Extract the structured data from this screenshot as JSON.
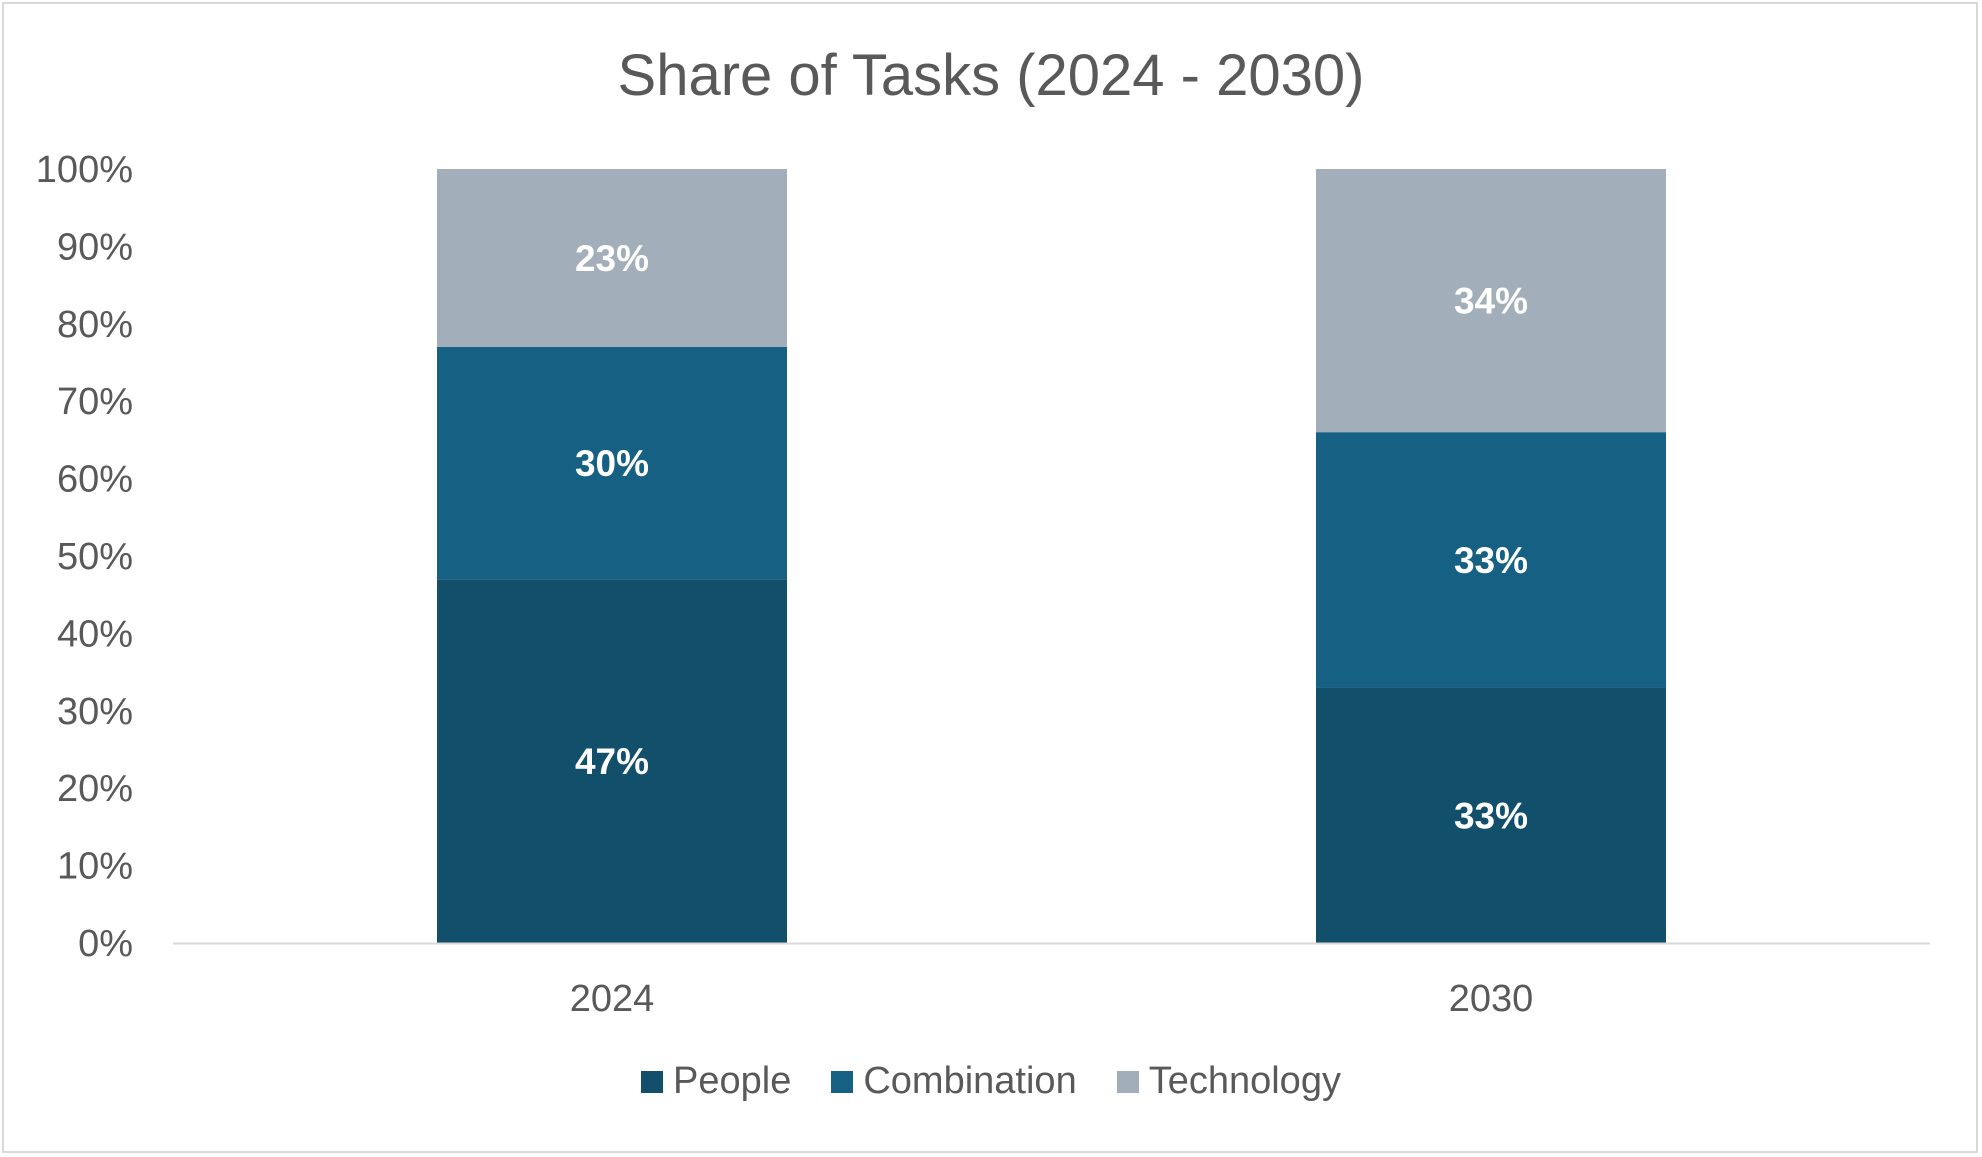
{
  "chart_data": {
    "type": "bar",
    "stacked": true,
    "title": "Share of Tasks (2024 - 2030)",
    "categories": [
      "2024",
      "2030"
    ],
    "series": [
      {
        "name": "People",
        "values": [
          47,
          33
        ],
        "labels": [
          "47%",
          "33%"
        ],
        "color": "#114f6b"
      },
      {
        "name": "Combination",
        "values": [
          30,
          33
        ],
        "labels": [
          "30%",
          "33%"
        ],
        "color": "#166083"
      },
      {
        "name": "Technology",
        "values": [
          23,
          34
        ],
        "labels": [
          "23%",
          "34%"
        ],
        "color": "#a2afba"
      }
    ],
    "ylim": [
      0,
      100
    ],
    "y_ticks": [
      "0%",
      "10%",
      "20%",
      "30%",
      "40%",
      "50%",
      "60%",
      "70%",
      "80%",
      "90%",
      "100%"
    ],
    "grid": false,
    "legend_position": "bottom"
  }
}
